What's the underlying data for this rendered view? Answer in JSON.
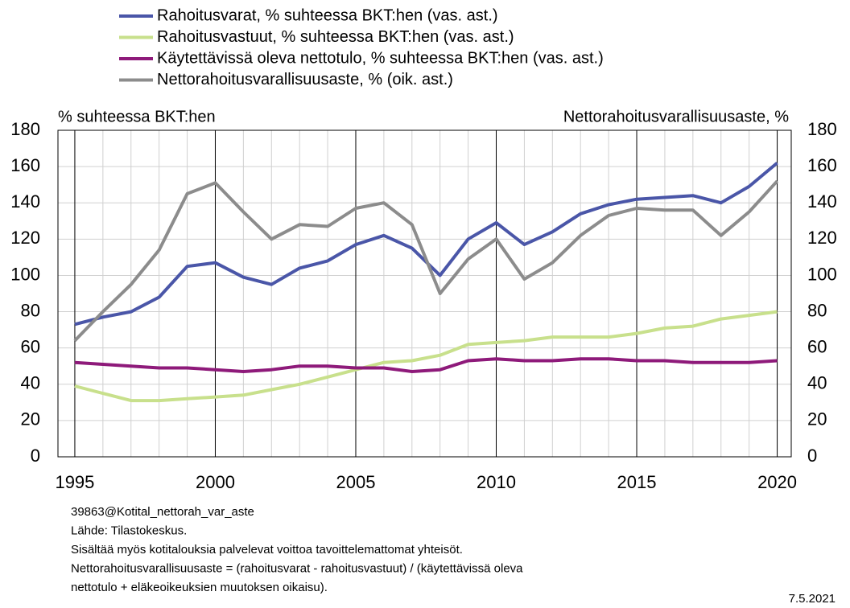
{
  "chart_data": {
    "type": "line",
    "ylabel": "% suhteessa BKT:hen",
    "y2label": "Nettorahoitusvarallisuusaste, %",
    "x": [
      1995,
      1996,
      1997,
      1998,
      1999,
      2000,
      2001,
      2002,
      2003,
      2004,
      2005,
      2006,
      2007,
      2008,
      2009,
      2010,
      2011,
      2012,
      2013,
      2014,
      2015,
      2016,
      2017,
      2018,
      2019,
      2020
    ],
    "series": [
      {
        "name": "Rahoitusvarat, % suhteessa BKT:hen (vas. ast.)",
        "color": "#4a56a8",
        "values": [
          73,
          77,
          80,
          88,
          105,
          107,
          99,
          95,
          104,
          108,
          117,
          122,
          115,
          100,
          120,
          129,
          117,
          124,
          134,
          139,
          142,
          143,
          144,
          140,
          149,
          162
        ]
      },
      {
        "name": "Rahoitusvastuut, % suhteessa BKT:hen (vas. ast.)",
        "color": "#c8e08c",
        "values": [
          39,
          35,
          31,
          31,
          32,
          33,
          34,
          37,
          40,
          44,
          48,
          52,
          53,
          56,
          62,
          63,
          64,
          66,
          66,
          66,
          68,
          71,
          72,
          76,
          78,
          80
        ]
      },
      {
        "name": "Käytettävissä oleva nettotulo, % suhteessa BKT:hen (vas. ast.)",
        "color": "#8e1a7a",
        "values": [
          52,
          51,
          50,
          49,
          49,
          48,
          47,
          48,
          50,
          50,
          49,
          49,
          47,
          48,
          53,
          54,
          53,
          53,
          54,
          54,
          53,
          53,
          52,
          52,
          52,
          53
        ]
      },
      {
        "name": "Nettorahoitusvarallisuusaste, % (oik. ast.)",
        "color": "#8c8c8c",
        "axis": "y2",
        "values": [
          64,
          80,
          95,
          114,
          145,
          151,
          135,
          120,
          128,
          127,
          137,
          140,
          128,
          90,
          109,
          120,
          98,
          107,
          122,
          133,
          137,
          136,
          136,
          122,
          135,
          152
        ]
      }
    ],
    "xlim": [
      1994.4,
      2020.5
    ],
    "xticks": [
      1995,
      2000,
      2005,
      2010,
      2015,
      2020
    ],
    "ylim": [
      0,
      180
    ],
    "yticks": [
      0,
      20,
      40,
      60,
      80,
      100,
      120,
      140,
      160,
      180
    ],
    "y2lim": [
      0,
      180
    ],
    "y2ticks": [
      0,
      20,
      40,
      60,
      80,
      100,
      120,
      140,
      160,
      180
    ],
    "grid": true,
    "notes": [
      "39863@Kotital_nettorah_var_aste",
      "Lähde: Tilastokeskus.",
      "Sisältää myös kotitalouksia palvelevat voittoa tavoittelemattomat yhteisöt.",
      "Nettorahoitusvarallisuusaste = (rahoitusvarat  - rahoitusvastuut)  / (käytettävissä  oleva",
      "nettotulo + eläkeoikeuksien muutoksen oikaisu)."
    ],
    "date": "7.5.2021"
  }
}
